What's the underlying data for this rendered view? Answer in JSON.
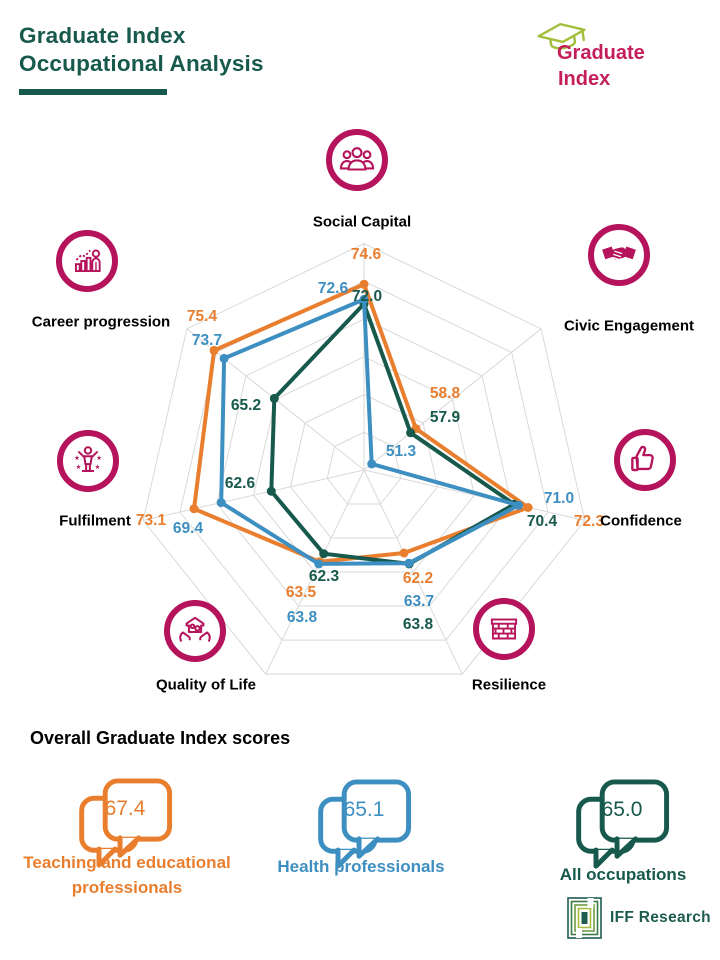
{
  "header": {
    "title_line1": "Graduate Index",
    "title_line2": "Occupational Analysis",
    "accent_color": "#17594C"
  },
  "brand": {
    "logo_line1": "Graduate",
    "logo_line2": "Index",
    "logo_text_color": "#C41E5B",
    "cap_color": "#A2BE3B"
  },
  "chart_data": {
    "type": "radar",
    "title": "Graduate Index Occupational Analysis",
    "categories": [
      "Social Capital",
      "Civic Engagement",
      "Confidence",
      "Resilience",
      "Quality of Life",
      "Fulfilment",
      "Career progression"
    ],
    "axis_icons": [
      "people-group-icon",
      "handshake-icon",
      "thumbs-up-icon",
      "brick-wall-icon",
      "hands-home-icon",
      "celebration-icon",
      "career-growth-icon"
    ],
    "icon_color": "#B5135B",
    "axes": {
      "min": 50,
      "max": 80,
      "ring_step": 5,
      "grid": true,
      "grid_color": "#D9D9D9"
    },
    "series": [
      {
        "name": "Teaching and educational professionals",
        "color": "#E87E2E",
        "values": [
          74.6,
          58.8,
          72.3,
          62.2,
          63.5,
          73.1,
          75.4
        ]
      },
      {
        "name": "Health professionals",
        "color": "#3E8FC1",
        "values": [
          72.6,
          51.3,
          71.0,
          63.7,
          63.8,
          69.4,
          73.7
        ]
      },
      {
        "name": "All occupations",
        "color": "#17594C",
        "values": [
          72.0,
          57.9,
          70.4,
          63.8,
          62.3,
          62.6,
          65.2
        ]
      }
    ]
  },
  "overall": {
    "heading": "Overall Graduate Index scores",
    "items": [
      {
        "label": "Teaching and educational professionals",
        "score": "67.4",
        "color": "#E87E2E"
      },
      {
        "label": "Health professionals",
        "score": "65.1",
        "color": "#3E8FC1"
      },
      {
        "label": "All occupations",
        "score": "65.0",
        "color": "#17594C"
      }
    ]
  },
  "footer": {
    "brand_text": "IFF Research"
  }
}
